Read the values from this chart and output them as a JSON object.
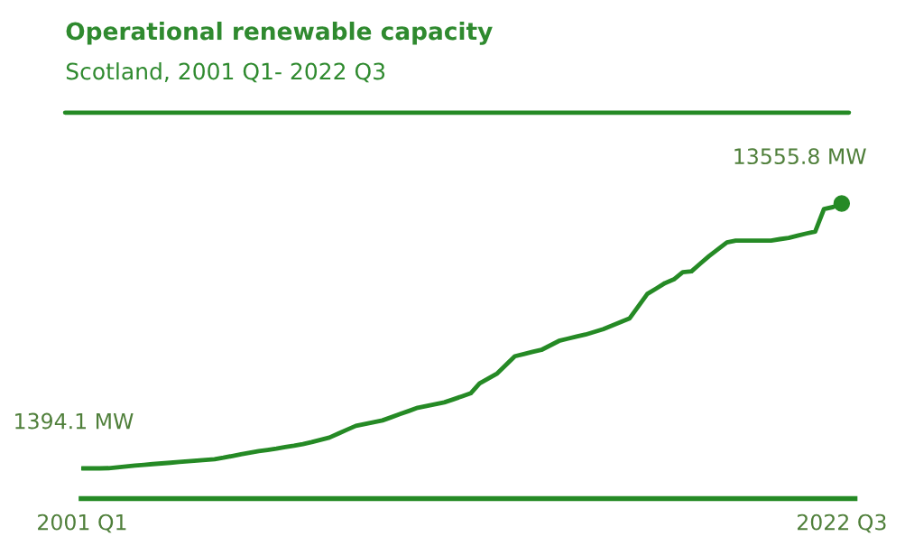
{
  "chart_data": {
    "type": "line",
    "title": "Operational renewable capacity",
    "subtitle": "Scotland, 2001 Q1- 2022 Q3",
    "categories": [
      "2001 Q1",
      null,
      null,
      null,
      null,
      null,
      null,
      null,
      null,
      null,
      null,
      null,
      null,
      null,
      null,
      null,
      null,
      null,
      null,
      null,
      null,
      null,
      null,
      null,
      null,
      null,
      null,
      null,
      null,
      null,
      null,
      null,
      null,
      null,
      null,
      null,
      null,
      null,
      null,
      null,
      null,
      null,
      null,
      null,
      null,
      null,
      null,
      null,
      null,
      null,
      null,
      null,
      null,
      null,
      null,
      null,
      null,
      null,
      null,
      null,
      null,
      null,
      null,
      null,
      null,
      null,
      null,
      null,
      null,
      null,
      null,
      null,
      null,
      null,
      null,
      null,
      null,
      null,
      null,
      null,
      null,
      null,
      null,
      null,
      null,
      null,
      "2022 Q3"
    ],
    "tick_labels": "x",
    "legend": false,
    "series": [
      {
        "color": "#258a25",
        "marker": "none",
        "line_style": "solid",
        "values": [
          1394.1,
          1394,
          1394,
          1400,
          1440,
          1480,
          1519,
          1550,
          1590,
          1620,
          1650,
          1685,
          1720,
          1750,
          1780,
          1810,
          1880,
          1960,
          2040,
          2110,
          2183,
          2240,
          2300,
          2370,
          2433,
          2510,
          2599,
          2700,
          2806,
          2990,
          3170,
          3346,
          3430,
          3510,
          3595,
          3740,
          3890,
          4030,
          4176,
          4260,
          4340,
          4425,
          4560,
          4700,
          4840,
          5296,
          5520,
          5753,
          6150,
          6542,
          6640,
          6740,
          6833,
          7040,
          7248,
          7350,
          7450,
          7539,
          7660,
          7788,
          7950,
          8120,
          8286,
          8850,
          9407,
          9650,
          9905,
          10071,
          10403,
          10444,
          10800,
          11150,
          11460,
          11773,
          11856,
          11856,
          11856,
          11856,
          11856,
          11920,
          11980,
          12080,
          12180,
          12271,
          13309,
          13392,
          13555.8
        ],
        "value_labels": [
          "1394.1 MW",
          null,
          null,
          null,
          null,
          null,
          null,
          null,
          null,
          null,
          null,
          null,
          null,
          null,
          null,
          null,
          null,
          null,
          null,
          null,
          null,
          null,
          null,
          null,
          null,
          null,
          null,
          null,
          null,
          null,
          null,
          null,
          null,
          null,
          null,
          null,
          null,
          null,
          null,
          null,
          null,
          null,
          null,
          null,
          null,
          null,
          null,
          null,
          null,
          null,
          null,
          null,
          null,
          null,
          null,
          null,
          null,
          null,
          null,
          null,
          null,
          null,
          null,
          null,
          null,
          null,
          null,
          null,
          null,
          null,
          null,
          null,
          null,
          null,
          null,
          null,
          null,
          null,
          null,
          null,
          null,
          null,
          null,
          null,
          null,
          null,
          "13555.8 MW"
        ]
      },
      {
        "type": "scatter",
        "color": "#258a25",
        "marker": "circle",
        "x": [
          "2022 Q3"
        ],
        "values": [
          13555.8
        ]
      }
    ]
  }
}
